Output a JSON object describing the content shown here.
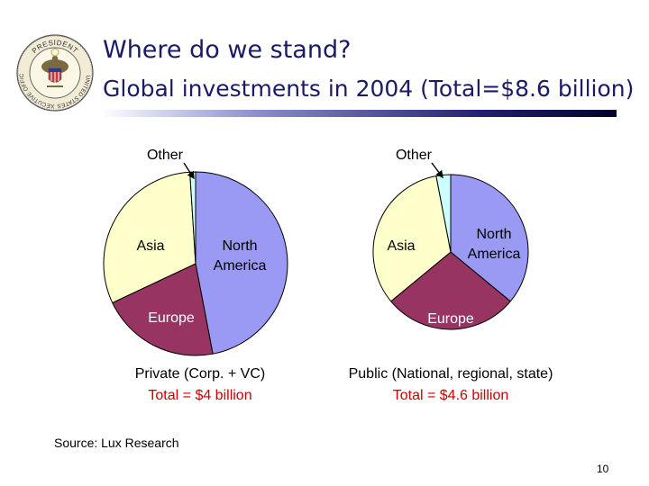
{
  "header": {
    "title": "Where do we stand?",
    "subtitle": "Global investments in 2004 (Total=$8.6 billion)"
  },
  "seal": {
    "top_text": "PRESIDENT",
    "left_text": "EXECUTIVE OFFICE",
    "right_text": "UNITED STATES",
    "of1": "of the",
    "of2": "of the"
  },
  "colors": {
    "north_america": "#9a9af5",
    "europe": "#973462",
    "asia": "#ffffcc",
    "other": "#ccffff",
    "caption_total": "#cc0000",
    "title": "#1a1a66"
  },
  "chart_data": [
    {
      "type": "pie",
      "caption": "Private (Corp. + VC)",
      "total_label": "Total = $4 billion",
      "slices": [
        {
          "label": "North America",
          "value": 47,
          "key": "north_america"
        },
        {
          "label": "Europe",
          "value": 21,
          "key": "europe"
        },
        {
          "label": "Asia",
          "value": 31,
          "key": "asia"
        },
        {
          "label": "Other",
          "value": 1,
          "key": "other"
        }
      ]
    },
    {
      "type": "pie",
      "caption": "Public (National, regional, state)",
      "total_label": "Total = $4.6 billion",
      "slices": [
        {
          "label": "North America",
          "value": 36,
          "key": "north_america"
        },
        {
          "label": "Europe",
          "value": 28,
          "key": "europe"
        },
        {
          "label": "Asia",
          "value": 33,
          "key": "asia"
        },
        {
          "label": "Other",
          "value": 3,
          "key": "other"
        }
      ]
    }
  ],
  "footer": {
    "source": "Source: Lux Research",
    "page_number": "10"
  }
}
